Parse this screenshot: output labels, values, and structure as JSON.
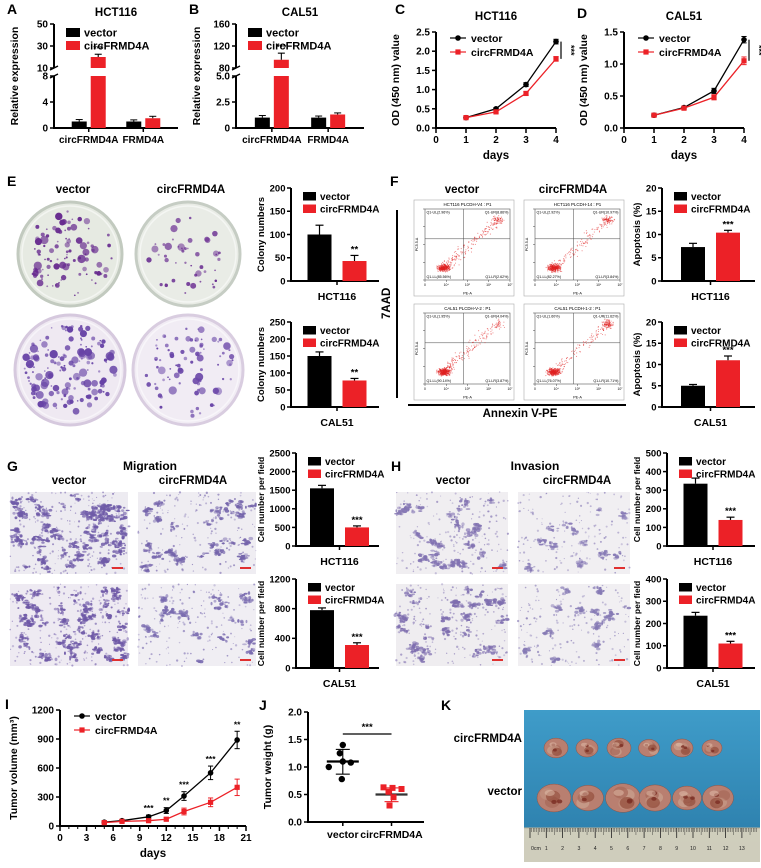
{
  "colors": {
    "vector": "#000000",
    "circFRMD4A": "#ec2127",
    "flow_dots": "#e02020",
    "scale_bar": "#e03030",
    "photo_background": "#2f86b4"
  },
  "panels": {
    "A": {
      "letter": "A"
    },
    "B": {
      "letter": "B"
    },
    "C": {
      "letter": "C"
    },
    "D": {
      "letter": "D"
    },
    "E": {
      "letter": "E",
      "columns": [
        "vector",
        "circFRMD4A"
      ]
    },
    "F": {
      "letter": "F",
      "columns": [
        "vector",
        "circFRMD4A"
      ],
      "yaxis": "7AAD",
      "xaxis": "Annexin V-PE"
    },
    "G": {
      "letter": "G",
      "title": "Migration",
      "columns": [
        "vector",
        "circFRMD4A"
      ]
    },
    "H": {
      "letter": "H",
      "title": "Invasion",
      "columns": [
        "vector",
        "circFRMD4A"
      ]
    },
    "I": {
      "letter": "I"
    },
    "J": {
      "letter": "J"
    },
    "K": {
      "letter": "K",
      "rows": [
        "circFRMD4A",
        "vector"
      ],
      "ruler": [
        "0cm",
        "1",
        "2",
        "3",
        "4",
        "5",
        "6",
        "7",
        "8",
        "9",
        "10",
        "11",
        "12",
        "13"
      ]
    }
  },
  "chart_data": [
    {
      "panel": "A",
      "type": "bar-broken",
      "title": "HCT116",
      "ylabel": "Relative expression",
      "categories": [
        "circFRMD4A",
        "FRMD4A"
      ],
      "axis_lower": {
        "range": [
          0,
          8
        ],
        "ticks": [
          "0",
          "4",
          "8"
        ]
      },
      "axis_upper": {
        "range": [
          10,
          50
        ],
        "ticks": [
          "10",
          "30",
          "50"
        ]
      },
      "series": [
        {
          "name": "vector",
          "color": "#000000",
          "values": [
            1.0,
            1.0
          ],
          "errors": [
            0.3,
            0.25
          ]
        },
        {
          "name": "circFRMD4A",
          "color": "#ec2127",
          "values": [
            20,
            1.5
          ],
          "errors": [
            2.5,
            0.3
          ]
        }
      ],
      "significance": [
        {
          "category": "circFRMD4A",
          "stars": "***"
        }
      ]
    },
    {
      "panel": "B",
      "type": "bar-broken",
      "title": "CAL51",
      "ylabel": "Relative expression",
      "categories": [
        "circFRMD4A",
        "FRMD4A"
      ],
      "axis_lower": {
        "range": [
          0,
          5
        ],
        "ticks": [
          "0",
          "2.5",
          "5.0"
        ]
      },
      "axis_upper": {
        "range": [
          80,
          160
        ],
        "ticks": [
          "80",
          "120",
          "160"
        ]
      },
      "series": [
        {
          "name": "vector",
          "color": "#000000",
          "values": [
            1.0,
            1.0
          ],
          "errors": [
            0.2,
            0.15
          ]
        },
        {
          "name": "circFRMD4A",
          "color": "#ec2127",
          "values": [
            95,
            1.3
          ],
          "errors": [
            12,
            0.15
          ]
        }
      ],
      "significance": [
        {
          "category": "circFRMD4A",
          "stars": "***"
        }
      ]
    },
    {
      "panel": "C",
      "type": "line",
      "title": "HCT116",
      "xlabel": "days",
      "ylabel": "OD (450 nm) value",
      "x": [
        1,
        2,
        3,
        4
      ],
      "xlim": [
        0,
        4
      ],
      "xticks": [
        "0",
        "1",
        "2",
        "3",
        "4"
      ],
      "ylim": [
        0,
        2.5
      ],
      "yticks": [
        0,
        0.5,
        1,
        1.5,
        2,
        2.5
      ],
      "ytick_labels": [
        "0.0",
        "0.5",
        "1.0",
        "1.5",
        "2.0",
        "2.5"
      ],
      "series": [
        {
          "name": "vector",
          "marker": "circle",
          "color": "#000000",
          "values": [
            0.27,
            0.5,
            1.13,
            2.25
          ],
          "errors": [
            0.02,
            0.03,
            0.05,
            0.06
          ]
        },
        {
          "name": "circFRMD4A",
          "marker": "square",
          "color": "#ec2127",
          "values": [
            0.27,
            0.42,
            0.9,
            1.8
          ],
          "errors": [
            0.02,
            0.03,
            0.05,
            0.06
          ]
        }
      ],
      "significance": "***"
    },
    {
      "panel": "D",
      "type": "line",
      "title": "CAL51",
      "xlabel": "days",
      "ylabel": "OD (450 nm) value",
      "x": [
        1,
        2,
        3,
        4
      ],
      "xlim": [
        0,
        4
      ],
      "xticks": [
        "0",
        "1",
        "2",
        "3",
        "4"
      ],
      "ylim": [
        0,
        1.5
      ],
      "yticks": [
        0,
        0.5,
        1,
        1.5
      ],
      "ytick_labels": [
        "0.0",
        "0.5",
        "1.0",
        "1.5"
      ],
      "series": [
        {
          "name": "vector",
          "marker": "circle",
          "color": "#000000",
          "values": [
            0.2,
            0.32,
            0.58,
            1.38
          ],
          "errors": [
            0.02,
            0.02,
            0.04,
            0.05
          ]
        },
        {
          "name": "circFRMD4A",
          "marker": "square",
          "color": "#ec2127",
          "values": [
            0.2,
            0.31,
            0.48,
            1.05
          ],
          "errors": [
            0.02,
            0.02,
            0.04,
            0.06
          ]
        }
      ],
      "significance": "***"
    },
    {
      "panel": "E1",
      "type": "bar",
      "ylabel": "Colony numbers",
      "xlabel": "HCT116",
      "ylim": [
        0,
        200
      ],
      "yticks": [
        "0",
        "50",
        "100",
        "150",
        "200"
      ],
      "series": [
        {
          "name": "vector",
          "color": "#000000",
          "value": 100,
          "error": 20
        },
        {
          "name": "circFRMD4A",
          "color": "#ec2127",
          "value": 43,
          "error": 12
        }
      ],
      "stars": "**"
    },
    {
      "panel": "E2",
      "type": "bar",
      "ylabel": "Colony numbers",
      "xlabel": "CAL51",
      "ylim": [
        0,
        250
      ],
      "yticks": [
        "0",
        "50",
        "100",
        "150",
        "200",
        "250"
      ],
      "series": [
        {
          "name": "vector",
          "color": "#000000",
          "value": 150,
          "error": 12
        },
        {
          "name": "circFRMD4A",
          "color": "#ec2127",
          "value": 78,
          "error": 6
        }
      ],
      "stars": "**"
    },
    {
      "panel": "F1",
      "type": "bar",
      "ylabel": "Apoptosis (%)",
      "xlabel": "HCT116",
      "ylim": [
        0,
        20
      ],
      "yticks": [
        "0",
        "5",
        "10",
        "15",
        "20"
      ],
      "series": [
        {
          "name": "vector",
          "color": "#000000",
          "value": 7.3,
          "error": 0.8
        },
        {
          "name": "circFRMD4A",
          "color": "#ec2127",
          "value": 10.4,
          "error": 0.5
        }
      ],
      "stars": "***"
    },
    {
      "panel": "F2",
      "type": "bar",
      "ylabel": "Apoptosis (%)",
      "xlabel": "CAL51",
      "ylim": [
        0,
        20
      ],
      "yticks": [
        "0",
        "5",
        "10",
        "15",
        "20"
      ],
      "series": [
        {
          "name": "vector",
          "color": "#000000",
          "value": 5.0,
          "error": 0.3
        },
        {
          "name": "circFRMD4A",
          "color": "#ec2127",
          "value": 11.0,
          "error": 1.0
        }
      ],
      "stars": "***"
    },
    {
      "panel": "G1",
      "type": "bar",
      "ylabel": "Cell number per field",
      "xlabel": "HCT116",
      "ylim": [
        0,
        2500
      ],
      "yticks": [
        "0",
        "500",
        "1000",
        "1500",
        "2000",
        "2500"
      ],
      "series": [
        {
          "name": "vector",
          "color": "#000000",
          "value": 1550,
          "error": 80
        },
        {
          "name": "circFRMD4A",
          "color": "#ec2127",
          "value": 500,
          "error": 40
        }
      ],
      "stars": "***"
    },
    {
      "panel": "G2",
      "type": "bar",
      "ylabel": "Cell number per field",
      "xlabel": "CAL51",
      "ylim": [
        0,
        1200
      ],
      "yticks": [
        "0",
        "400",
        "800",
        "1200"
      ],
      "series": [
        {
          "name": "vector",
          "color": "#000000",
          "value": 780,
          "error": 30
        },
        {
          "name": "circFRMD4A",
          "color": "#ec2127",
          "value": 310,
          "error": 30
        }
      ],
      "stars": "***"
    },
    {
      "panel": "H1",
      "type": "bar",
      "ylabel": "Cell number per field",
      "xlabel": "HCT116",
      "ylim": [
        0,
        500
      ],
      "yticks": [
        "0",
        "100",
        "200",
        "300",
        "400",
        "500"
      ],
      "series": [
        {
          "name": "vector",
          "color": "#000000",
          "value": 335,
          "error": 30
        },
        {
          "name": "circFRMD4A",
          "color": "#ec2127",
          "value": 140,
          "error": 15
        }
      ],
      "stars": "***"
    },
    {
      "panel": "H2",
      "type": "bar",
      "ylabel": "Cell number per field",
      "xlabel": "CAL51",
      "ylim": [
        0,
        400
      ],
      "yticks": [
        "0",
        "100",
        "200",
        "300",
        "400"
      ],
      "series": [
        {
          "name": "vector",
          "color": "#000000",
          "value": 235,
          "error": 15
        },
        {
          "name": "circFRMD4A",
          "color": "#ec2127",
          "value": 110,
          "error": 10
        }
      ],
      "stars": "***"
    },
    {
      "panel": "I",
      "type": "line",
      "title": "",
      "xlabel": "days",
      "ylabel": "Tumor volume (mm³)",
      "x": [
        5,
        7,
        10,
        12,
        14,
        17,
        20
      ],
      "xlim": [
        0,
        21
      ],
      "xticks": [
        "0",
        "3",
        "6",
        "9",
        "12",
        "15",
        "18",
        "21"
      ],
      "xminor": 1,
      "ylim": [
        0,
        1200
      ],
      "yticks": [
        0,
        300,
        600,
        900,
        1200
      ],
      "ytick_labels": [
        "0",
        "300",
        "600",
        "900",
        "1200"
      ],
      "series": [
        {
          "name": "vector",
          "marker": "circle",
          "color": "#000000",
          "values": [
            40,
            55,
            95,
            160,
            310,
            550,
            890
          ],
          "errors": [
            12,
            12,
            18,
            30,
            45,
            70,
            90
          ]
        },
        {
          "name": "circFRMD4A",
          "marker": "square",
          "color": "#ec2127",
          "values": [
            35,
            48,
            55,
            70,
            150,
            245,
            400
          ],
          "errors": [
            10,
            10,
            12,
            15,
            35,
            45,
            85
          ]
        }
      ],
      "significance": [
        {
          "x": 10,
          "stars": "***"
        },
        {
          "x": 12,
          "stars": "**"
        },
        {
          "x": 14,
          "stars": "***"
        },
        {
          "x": 17,
          "stars": "***"
        },
        {
          "x": 20,
          "stars": "**"
        }
      ]
    },
    {
      "panel": "J",
      "type": "scatter",
      "ylabel": "Tumor weight (g)",
      "ylim": [
        0,
        2
      ],
      "yticks": [
        0,
        0.5,
        1,
        1.5,
        2
      ],
      "ytick_labels": [
        "0.0",
        "0.5",
        "1.0",
        "1.5",
        "2.0"
      ],
      "groups": [
        {
          "name": "vector",
          "color": "#000000",
          "marker": "circle",
          "points": [
            1.4,
            1.25,
            1.1,
            1.08,
            1.0,
            0.78
          ],
          "mean": 1.1,
          "sd_low": 0.87,
          "sd_high": 1.32
        },
        {
          "name": "circFRMD4A",
          "color": "#ec2127",
          "marker": "square",
          "points": [
            0.63,
            0.62,
            0.6,
            0.55,
            0.45,
            0.3
          ],
          "mean": 0.5,
          "sd_low": 0.37,
          "sd_high": 0.62
        }
      ],
      "significance": "***"
    },
    {
      "panel": "F-flow",
      "type": "flow-cytometry",
      "axis_x_label": "PE-A",
      "axis_y_label": "PC5.5-A",
      "axis_x_ticks": [
        "0",
        "10⁴",
        "10⁵",
        "10⁶",
        "10⁷"
      ],
      "plots": [
        {
          "title": "HCT116 PLCDH-V4 : P1",
          "cell_line": "HCT116",
          "condition": "vector",
          "quadrants": {
            "UL": "Q1-UL(2.96%)",
            "UR": "Q1-UR(8.86%)",
            "LL": "Q1-LL(85.56%)",
            "LR": "Q1-LR(2.62%)"
          }
        },
        {
          "title": "HCT116 PLCDH-14 : P1",
          "cell_line": "HCT116",
          "condition": "circFRMD4A",
          "quadrants": {
            "UL": "Q1-UL(2.92%)",
            "UR": "Q1-UR(10.97%)",
            "LL": "Q1-LL(82.27%)",
            "LR": "Q1-LR(3.84%)"
          }
        },
        {
          "title": "CAL51 PLCDH-V-2 : P1",
          "cell_line": "CAL51",
          "condition": "vector",
          "quadrants": {
            "UL": "Q1-UL(1.95%)",
            "UR": "Q1-UR(4.04%)",
            "LL": "Q1-LL(90.14%)",
            "LR": "Q1-LR(3.87%)"
          }
        },
        {
          "title": "CAL51 PLCDH-1-2 : P1",
          "cell_line": "CAL51",
          "condition": "circFRMD4A",
          "quadrants": {
            "UL": "Q1-UL(1.60%)",
            "UR": "Q1-UR(11.62%)",
            "LL": "Q1-LL(76.07%)",
            "LR": "Q1-LR(10.71%)"
          }
        }
      ]
    }
  ]
}
